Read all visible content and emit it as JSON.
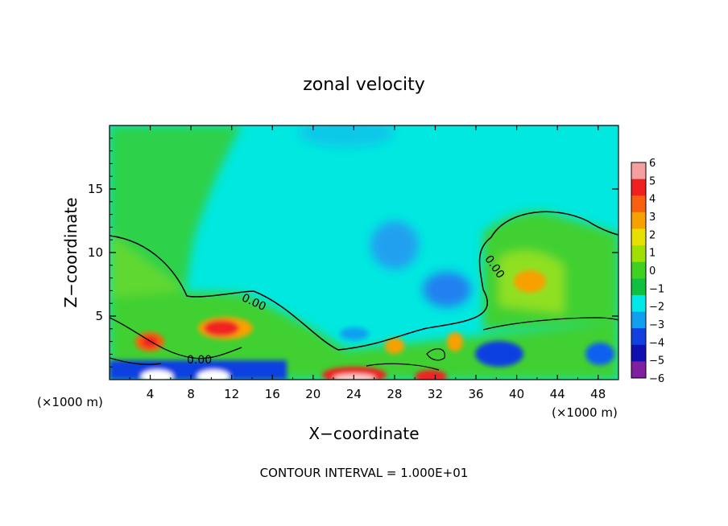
{
  "chart_data": {
    "type": "heatmap",
    "title": "zonal velocity",
    "xlabel": "X−coordinate",
    "ylabel": "Z−coordinate",
    "x_unit_label": "(×1000 m)",
    "x_unit_label_right": "(×1000 m)",
    "xlim": [
      0,
      50
    ],
    "ylim": [
      0,
      20
    ],
    "x_ticks": [
      4,
      8,
      12,
      16,
      20,
      24,
      28,
      32,
      36,
      40,
      44,
      48
    ],
    "x_tick_labels": [
      "4",
      "8",
      "12",
      "16",
      "20",
      "24",
      "28",
      "32",
      "36",
      "40",
      "44",
      "48"
    ],
    "y_ticks": [
      5,
      10,
      15
    ],
    "y_tick_labels": [
      "5",
      "10",
      "15"
    ],
    "colorbar": {
      "levels": [
        6,
        5,
        4,
        3,
        2,
        1,
        0,
        -1,
        -2,
        -3,
        -4,
        -5,
        -6
      ],
      "labels": [
        "6",
        "5",
        "4",
        "3",
        "2",
        "1",
        "0",
        "−1",
        "−2",
        "−3",
        "−4",
        "−5",
        "−6"
      ],
      "colors": [
        "#f4a0a0",
        "#f02020",
        "#f86010",
        "#f8a000",
        "#e8e000",
        "#a0e000",
        "#40d020",
        "#10c040",
        "#00e8e8",
        "#10a0f0",
        "#1040e0",
        "#1010b0",
        "#8020a0"
      ]
    },
    "contour_labels": [
      "0.00",
      "0.00",
      "0.00"
    ],
    "footer": "CONTOUR INTERVAL = 1.000E+01"
  }
}
